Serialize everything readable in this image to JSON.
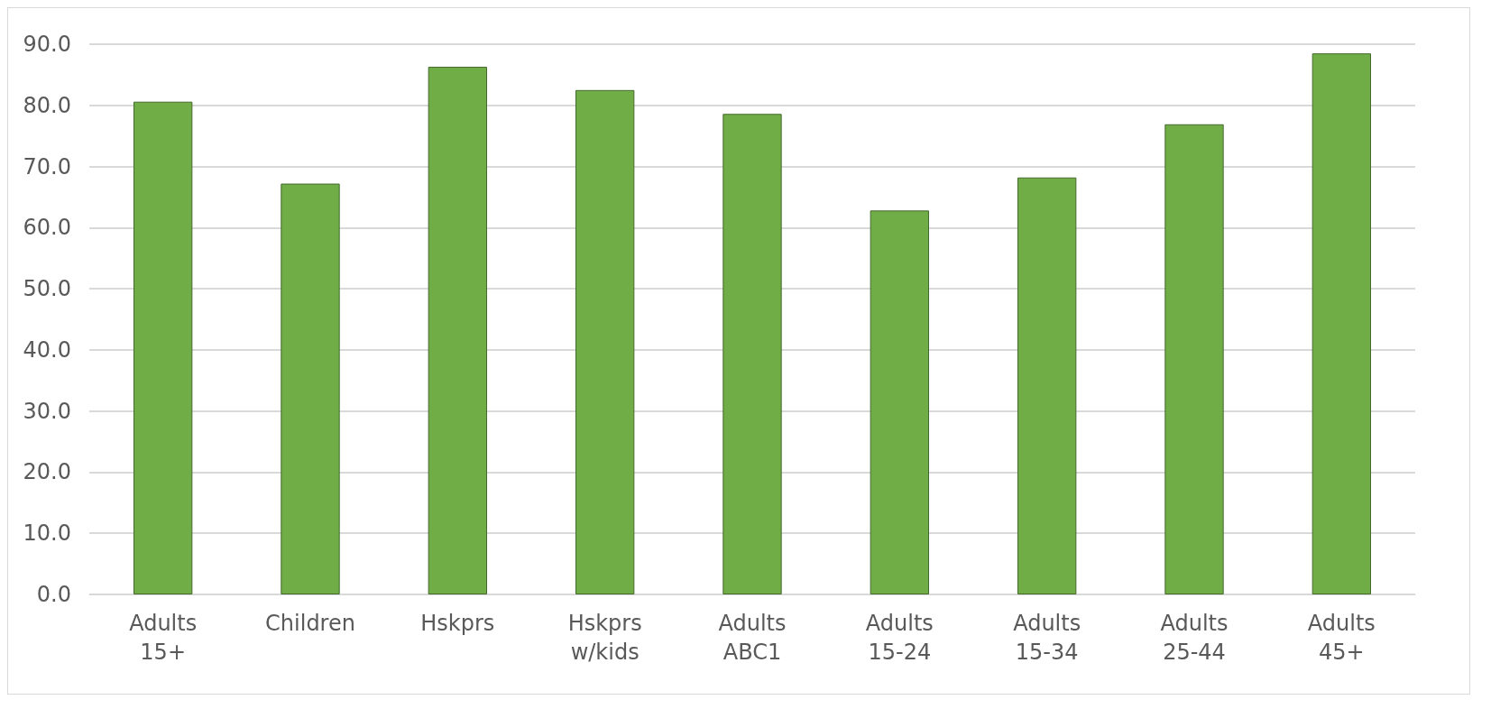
{
  "chart_data": {
    "type": "bar",
    "categories": [
      "Adults\n15+",
      "Children",
      "Hskprs",
      "Hskprs\nw/kids",
      "Adults\nABC1",
      "Adults\n15-24",
      "Adults\n15-34",
      "Adults\n25-44",
      "Adults\n45+"
    ],
    "values": [
      80.6,
      67.2,
      86.3,
      82.5,
      78.6,
      62.8,
      68.2,
      76.9,
      88.5
    ],
    "color": "#70ad47",
    "ylim": [
      0,
      90
    ],
    "yticks": [
      {
        "value": 0,
        "label": "0.0"
      },
      {
        "value": 10,
        "label": "10.0"
      },
      {
        "value": 20,
        "label": "20.0"
      },
      {
        "value": 30,
        "label": "30.0"
      },
      {
        "value": 40,
        "label": "40.0"
      },
      {
        "value": 50,
        "label": "50.0"
      },
      {
        "value": 60,
        "label": "60.0"
      },
      {
        "value": 70,
        "label": "70.0"
      },
      {
        "value": 80,
        "label": "80.0"
      },
      {
        "value": 90,
        "label": "90.0"
      }
    ],
    "grid": "y"
  }
}
